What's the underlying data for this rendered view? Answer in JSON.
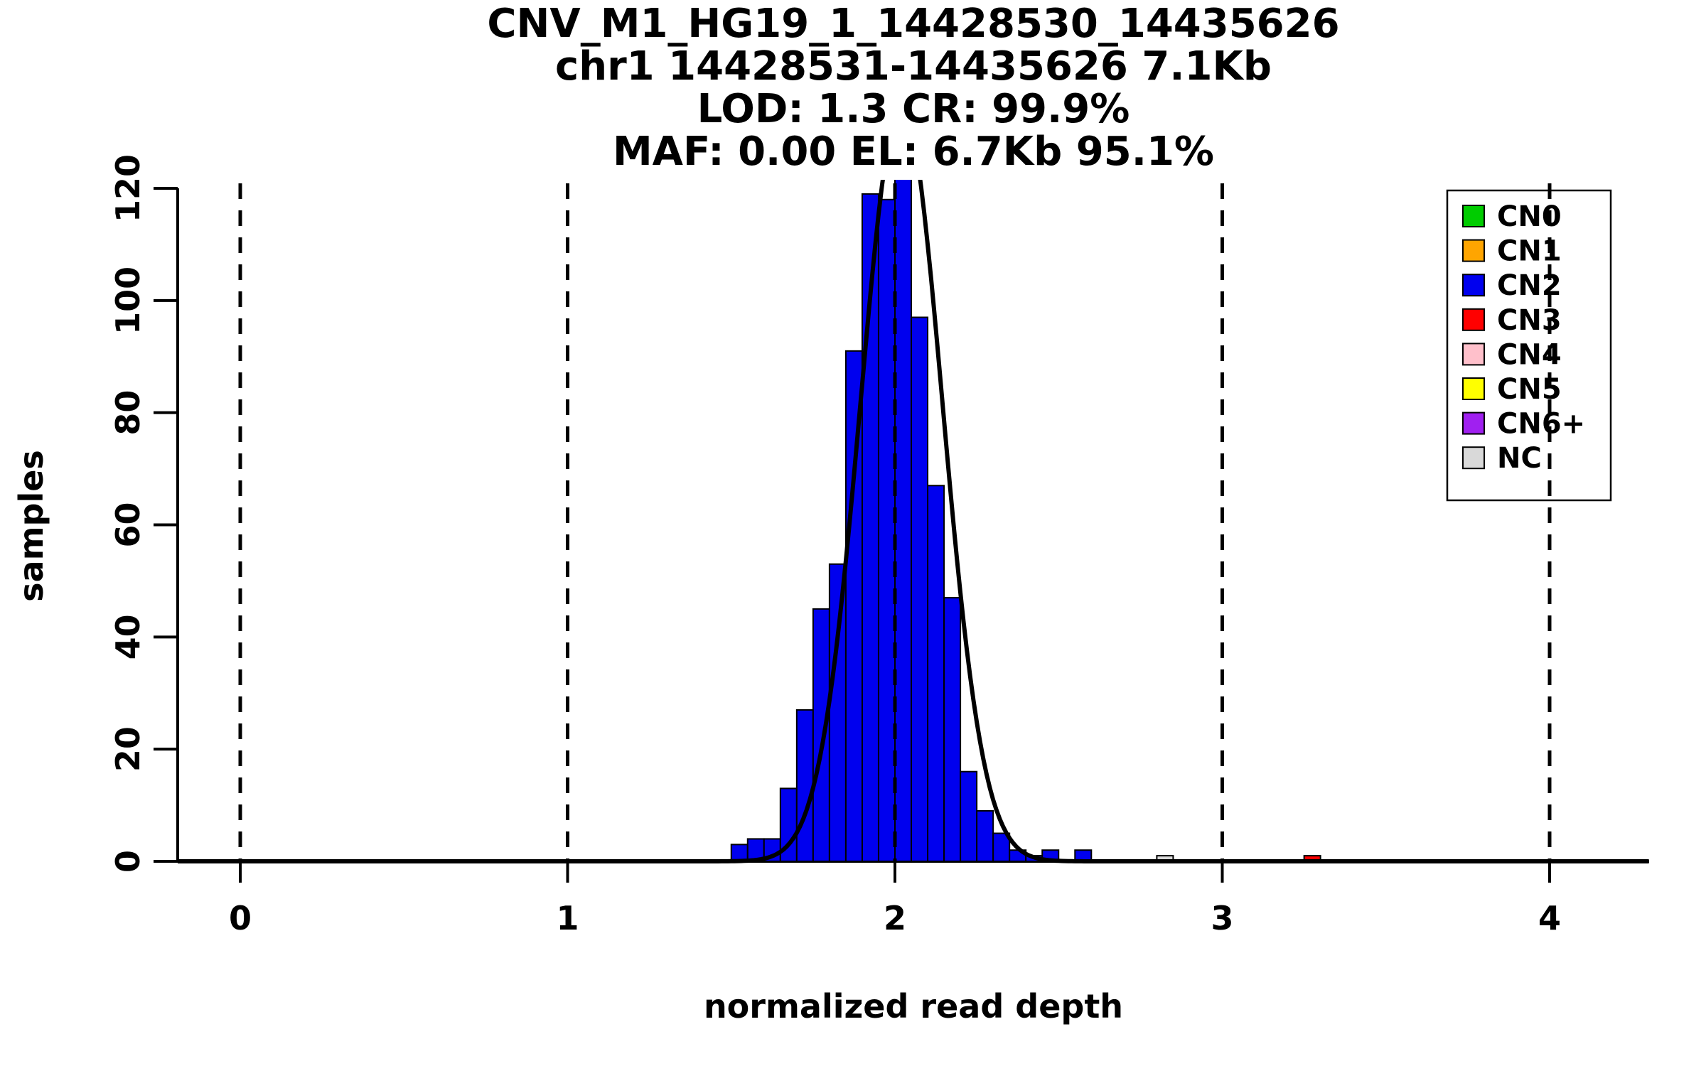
{
  "page": {
    "background": "#FFFFFF",
    "foreground": "#000000"
  },
  "chart_data": {
    "type": "histogram",
    "title_lines": [
      "CNV_M1_HG19_1_14428530_14435626",
      "chr1 14428531-14435626 7.1Kb",
      "LOD: 1.3 CR: 99.9%",
      "MAF: 0.00 EL: 6.7Kb 95.1%"
    ],
    "xlabel": "normalized read depth",
    "ylabel": "samples",
    "xlim": [
      -0.19,
      4.3
    ],
    "ylim": [
      0,
      120
    ],
    "x_ticks": [
      0,
      1,
      2,
      3,
      4
    ],
    "y_ticks": [
      0,
      20,
      40,
      60,
      80,
      100,
      120
    ],
    "dashed_guides_x": [
      0,
      1,
      2,
      3,
      4
    ],
    "grid": false,
    "bin_width": 0.05,
    "bar_outline": "#000000",
    "bars": [
      {
        "x": 1.5,
        "count": 3,
        "cn": "CN2"
      },
      {
        "x": 1.55,
        "count": 4,
        "cn": "CN2"
      },
      {
        "x": 1.6,
        "count": 4,
        "cn": "CN2"
      },
      {
        "x": 1.65,
        "count": 13,
        "cn": "CN2"
      },
      {
        "x": 1.7,
        "count": 27,
        "cn": "CN2"
      },
      {
        "x": 1.75,
        "count": 45,
        "cn": "CN2"
      },
      {
        "x": 1.8,
        "count": 53,
        "cn": "CN2"
      },
      {
        "x": 1.85,
        "count": 91,
        "cn": "CN2"
      },
      {
        "x": 1.9,
        "count": 119,
        "cn": "CN2"
      },
      {
        "x": 1.95,
        "count": 118,
        "cn": "CN2"
      },
      {
        "x": 2.0,
        "count": 122,
        "cn": "CN2"
      },
      {
        "x": 2.05,
        "count": 97,
        "cn": "CN2"
      },
      {
        "x": 2.1,
        "count": 67,
        "cn": "CN2"
      },
      {
        "x": 2.15,
        "count": 47,
        "cn": "CN2"
      },
      {
        "x": 2.2,
        "count": 16,
        "cn": "CN2"
      },
      {
        "x": 2.25,
        "count": 9,
        "cn": "CN2"
      },
      {
        "x": 2.3,
        "count": 5,
        "cn": "CN2"
      },
      {
        "x": 2.35,
        "count": 2,
        "cn": "CN2"
      },
      {
        "x": 2.4,
        "count": 1,
        "cn": "CN2"
      },
      {
        "x": 2.45,
        "count": 2,
        "cn": "CN2"
      },
      {
        "x": 2.55,
        "count": 2,
        "cn": "CN2"
      },
      {
        "x": 2.8,
        "count": 1,
        "cn": "NC"
      },
      {
        "x": 3.25,
        "count": 1,
        "cn": "CN3"
      }
    ],
    "fit_curve": {
      "shape": "gaussian",
      "mean": 2.02,
      "sd": 0.125,
      "peak": 135,
      "color": "#000000"
    },
    "legend": {
      "position": "top-right",
      "entries": [
        {
          "label": "CN0",
          "color": "#00CC00"
        },
        {
          "label": "CN1",
          "color": "#FFA500"
        },
        {
          "label": "CN2",
          "color": "#0000EE"
        },
        {
          "label": "CN3",
          "color": "#FF0000"
        },
        {
          "label": "CN4",
          "color": "#FFC0CB"
        },
        {
          "label": "CN5",
          "color": "#FFFF00"
        },
        {
          "label": "CN6+",
          "color": "#A020F0"
        },
        {
          "label": "NC",
          "color": "#D9D9D9"
        }
      ]
    }
  }
}
